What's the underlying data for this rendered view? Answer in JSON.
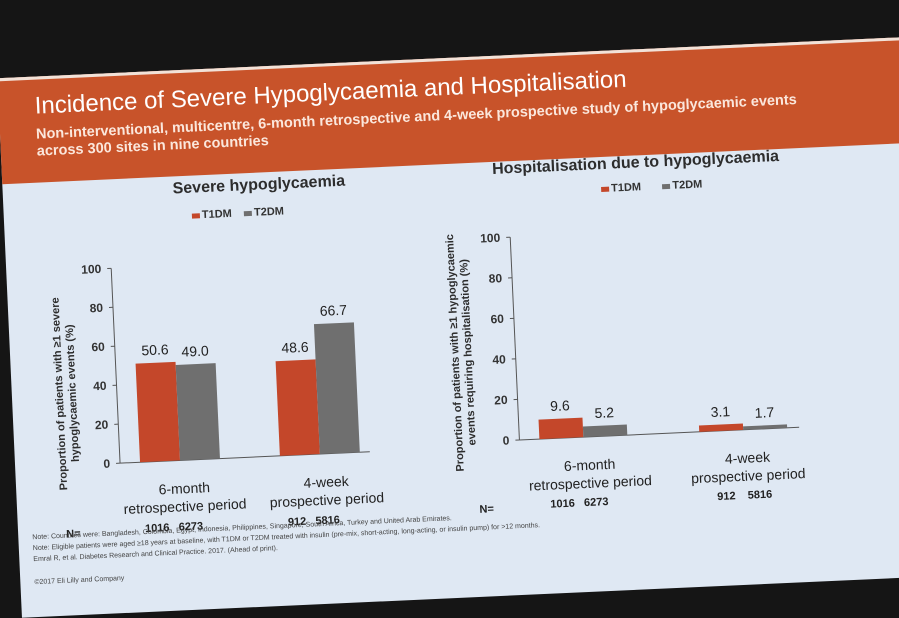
{
  "slide": {
    "title": "Incidence of Severe Hypoglycaemia and Hospitalisation",
    "subtitle": "Non-interventional, multicentre, 6-month retrospective and 4-week prospective study of hypoglycaemic events across 300 sites in nine countries"
  },
  "colors": {
    "t1dm": "#c4472a",
    "t2dm": "#6f6f6f",
    "axis": "#555555"
  },
  "legend": {
    "t1dm": "T1DM",
    "t2dm": "T2DM"
  },
  "n_label": "N=",
  "notes": [
    "Note: Countries were: Bangladesh, Colombia, Egypt, Indonesia, Philippines, Singapore, South Africa, Turkey and United Arab Emirates.",
    "Note: Eligible patients were aged ≥18 years at baseline, with T1DM or T2DM treated with insulin (pre-mix, short-acting, long-acting, or insulin pump) for >12 months.",
    "Emral R, et al. Diabetes Research and Clinical Practice. 2017. (Ahead of print)."
  ],
  "copyright": "©2017 Eli Lilly and Company",
  "chart_data": [
    {
      "type": "bar",
      "title": "Severe hypoglycaemia",
      "ylabel": "Proportion of patients with ≥1 severe hypoglycaemic events (%)",
      "categories": [
        "6-month retrospective period",
        "4-week prospective period"
      ],
      "category_lines": [
        [
          "6-month",
          "retrospective period"
        ],
        [
          "4-week",
          "prospective period"
        ]
      ],
      "series": [
        {
          "name": "T1DM",
          "values": [
            50.6,
            48.6
          ],
          "n": [
            1016,
            912
          ]
        },
        {
          "name": "T2DM",
          "values": [
            49.0,
            66.7
          ],
          "n": [
            6273,
            5816
          ]
        }
      ],
      "yticks": [
        0,
        20,
        40,
        60,
        80,
        100
      ],
      "ylim": [
        0,
        100
      ],
      "legend_position": "top-center",
      "grid": false
    },
    {
      "type": "bar",
      "title": "Hospitalisation due to hypoglycaemia",
      "ylabel": "Proportion of patients with ≥1 hypoglycaemic events requiring hospitalisation (%)",
      "categories": [
        "6-month retrospective period",
        "4-week prospective period"
      ],
      "category_lines": [
        [
          "6-month",
          "retrospective period"
        ],
        [
          "4-week",
          "prospective period"
        ]
      ],
      "series": [
        {
          "name": "T1DM",
          "values": [
            9.6,
            3.1
          ],
          "n": [
            1016,
            912
          ]
        },
        {
          "name": "T2DM",
          "values": [
            5.2,
            1.7
          ],
          "n": [
            6273,
            5816
          ]
        }
      ],
      "yticks": [
        0,
        20,
        40,
        60,
        80,
        100
      ],
      "ylim": [
        0,
        100
      ],
      "legend_position": "top-center",
      "grid": false
    }
  ]
}
